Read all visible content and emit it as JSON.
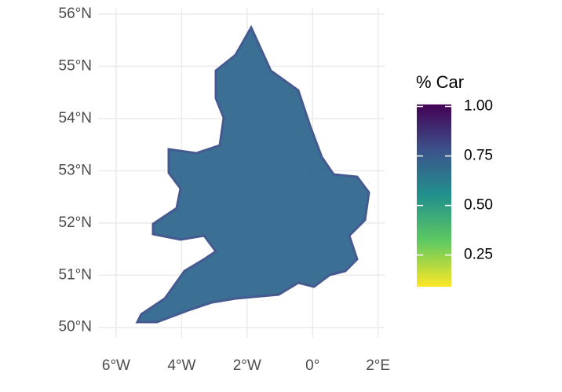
{
  "chart_data": {
    "type": "map",
    "xlim": [
      -6.55,
      2.2
    ],
    "ylim": [
      49.8,
      56.12
    ],
    "xticks": [
      {
        "value": -6,
        "label": "6°W"
      },
      {
        "value": -4,
        "label": "4°W"
      },
      {
        "value": -2,
        "label": "2°W"
      },
      {
        "value": 0,
        "label": "0°"
      },
      {
        "value": 2,
        "label": "2°E"
      }
    ],
    "yticks": [
      {
        "value": 50,
        "label": "50°N"
      },
      {
        "value": 51,
        "label": "51°N"
      },
      {
        "value": 52,
        "label": "52°N"
      },
      {
        "value": 53,
        "label": "53°N"
      },
      {
        "value": 54,
        "label": "54°N"
      },
      {
        "value": 55,
        "label": "55°N"
      },
      {
        "value": 56,
        "label": "56°N"
      }
    ],
    "grid": true,
    "colorbar": {
      "title": "% Car",
      "lim": [
        0.09,
        1.01
      ],
      "ticks": [
        {
          "value": 0.25,
          "label": "0.25"
        },
        {
          "value": 0.5,
          "label": "0.50"
        },
        {
          "value": 0.75,
          "label": "0.75"
        },
        {
          "value": 1,
          "label": "1.00"
        }
      ],
      "colors": [
        "#fde725",
        "#5ec962",
        "#21918c",
        "#3b528b",
        "#440154"
      ]
    }
  }
}
